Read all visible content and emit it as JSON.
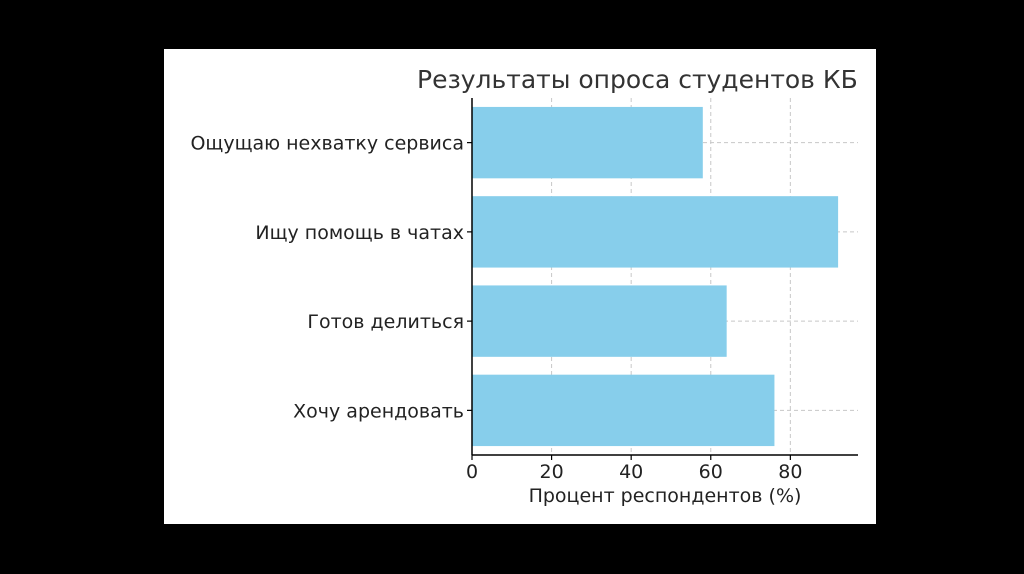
{
  "chart_data": {
    "type": "bar",
    "orientation": "horizontal",
    "title": "Результаты опроса студентов КБ",
    "xlabel": "Процент респондентов (%)",
    "ylabel": "",
    "categories": [
      "Ощущаю нехватку сервиса",
      "Ищу помощь в чатах",
      "Готов делиться",
      "Хочу арендовать"
    ],
    "values": [
      58,
      92,
      64,
      76
    ],
    "xlim": [
      0,
      97
    ],
    "xticks": [
      0,
      20,
      40,
      60,
      80
    ],
    "grid": true,
    "bar_color": "#87CEEB",
    "background_color": "#ffffff",
    "frame_color": "#000000"
  }
}
